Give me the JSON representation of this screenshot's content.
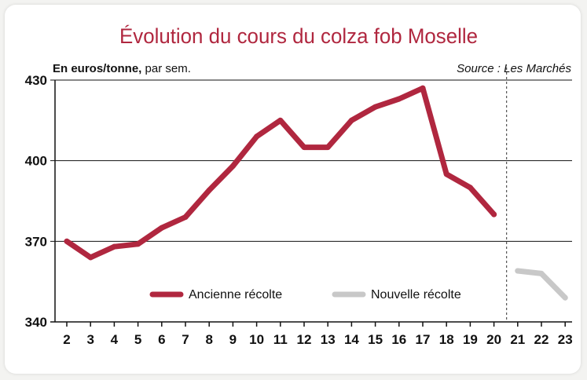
{
  "colors": {
    "ancienne": "#b0273f",
    "nouvelle": "#c8c8c8",
    "title": "#b0273f",
    "text": "#111111",
    "grid": "#111111"
  },
  "chart_data": {
    "type": "line",
    "title": "Évolution du cours du colza fob Moselle",
    "unit_label_bold": "En euros/tonne,",
    "unit_label_rest": " par sem.",
    "source": "Source : Les Marchés",
    "ylim": [
      340,
      430
    ],
    "yticks": [
      340,
      370,
      400,
      430
    ],
    "x_ticks": [
      "2",
      "3",
      "4",
      "5",
      "6",
      "7",
      "8",
      "9",
      "10",
      "11",
      "12",
      "13",
      "14",
      "15",
      "16",
      "17",
      "18",
      "19",
      "20",
      "21",
      "22",
      "23"
    ],
    "grid": true,
    "divider_after_week": 20,
    "legend_position": "bottom-inside",
    "series": [
      {
        "name": "Ancienne récolte",
        "x": [
          2,
          3,
          4,
          5,
          6,
          7,
          8,
          9,
          10,
          11,
          12,
          13,
          14,
          15,
          16,
          17,
          18,
          19,
          20
        ],
        "values": [
          370,
          364,
          368,
          369,
          375,
          379,
          389,
          398,
          409,
          415,
          405,
          405,
          415,
          420,
          423,
          427,
          395,
          390,
          380
        ]
      },
      {
        "name": "Nouvelle récolte",
        "x": [
          21,
          22,
          23
        ],
        "values": [
          359,
          358,
          349
        ]
      }
    ]
  }
}
